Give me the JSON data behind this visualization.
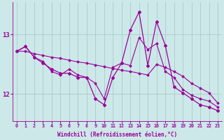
{
  "background_color": "#cce8e8",
  "line_color": "#990099",
  "grid_color": "#aacccc",
  "xlabel": "Windchill (Refroidissement éolien,°C)",
  "xlabel_color": "#990099",
  "tick_color": "#990099",
  "x_ticks": [
    0,
    1,
    2,
    3,
    4,
    5,
    6,
    7,
    8,
    9,
    10,
    11,
    12,
    13,
    14,
    15,
    16,
    17,
    18,
    19,
    20,
    21,
    22,
    23
  ],
  "y_ticks": [
    12,
    13
  ],
  "ylim": [
    11.55,
    13.55
  ],
  "xlim": [
    -0.5,
    23.5
  ],
  "figsize": [
    3.2,
    2.0
  ],
  "dpi": 100,
  "series": [
    {
      "x": [
        0,
        1,
        2,
        3,
        4,
        5,
        6,
        7,
        8,
        9,
        10,
        11,
        12,
        13,
        14,
        15,
        16,
        17,
        18,
        19,
        20,
        21,
        22,
        23
      ],
      "y": [
        12.72,
        12.72,
        12.68,
        12.65,
        12.62,
        12.6,
        12.57,
        12.54,
        12.52,
        12.49,
        12.46,
        12.43,
        12.4,
        12.38,
        12.35,
        12.32,
        12.5,
        12.45,
        12.38,
        12.3,
        12.18,
        12.1,
        12.02,
        11.85
      ],
      "marker": "D",
      "markersize": 1.5,
      "linewidth": 0.8
    },
    {
      "x": [
        0,
        1,
        2,
        3,
        4,
        5,
        6,
        7,
        8,
        9,
        10,
        11,
        12,
        13,
        14,
        15,
        16,
        17,
        18,
        19,
        20,
        21,
        22,
        23
      ],
      "y": [
        12.72,
        12.8,
        12.62,
        12.55,
        12.38,
        12.32,
        12.42,
        12.32,
        12.28,
        12.18,
        11.92,
        12.45,
        12.52,
        12.48,
        12.95,
        12.75,
        12.85,
        12.38,
        12.28,
        12.08,
        11.98,
        11.92,
        11.88,
        11.78
      ],
      "marker": "D",
      "markersize": 1.5,
      "linewidth": 0.8
    },
    {
      "x": [
        0,
        1,
        2,
        3,
        4,
        5,
        6,
        7,
        8,
        9,
        10,
        11,
        12,
        13,
        14,
        15,
        16,
        17,
        18,
        19,
        20,
        21,
        22,
        23
      ],
      "y": [
        12.72,
        12.8,
        12.62,
        12.52,
        12.42,
        12.35,
        12.35,
        12.28,
        12.28,
        11.92,
        11.82,
        12.28,
        12.52,
        13.08,
        13.38,
        12.48,
        13.22,
        12.82,
        12.12,
        12.02,
        11.92,
        11.82,
        11.78,
        11.72
      ],
      "marker": "D",
      "markersize": 2.0,
      "linewidth": 0.9
    }
  ]
}
